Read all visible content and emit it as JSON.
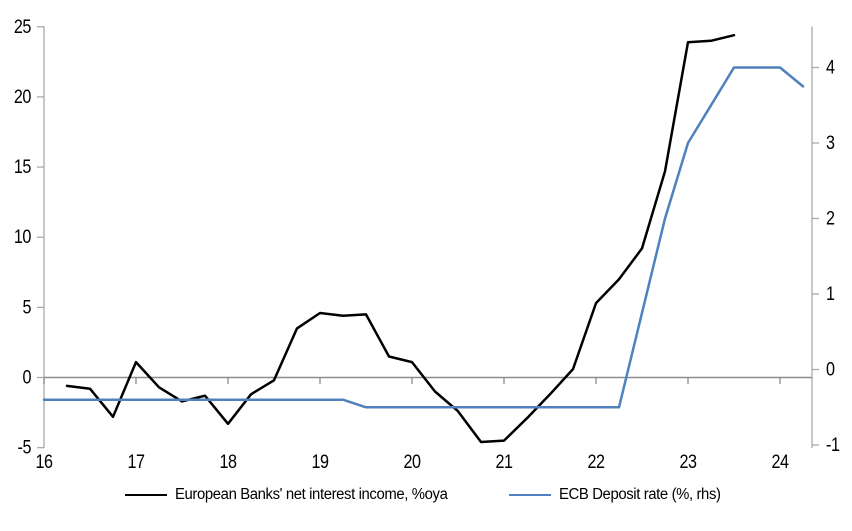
{
  "chart_data": {
    "type": "line",
    "title": "",
    "x_axis": {
      "min": 16,
      "max": 24.35,
      "ticks": [
        16,
        17,
        18,
        19,
        20,
        21,
        22,
        23,
        24
      ]
    },
    "left_axis": {
      "min": -5,
      "max": 25,
      "ticks": [
        -5,
        0,
        5,
        10,
        15,
        20,
        25
      ]
    },
    "right_axis": {
      "min": -1,
      "max": 4.55,
      "ticks": [
        -1,
        0,
        1,
        2,
        3,
        4
      ]
    },
    "grid": false,
    "legend_position": "bottom",
    "colors": {
      "nii_line": "#000000",
      "ecb_line": "#4E81BD",
      "axis": "#A9A9A9",
      "zero_line": "#8C8C8C"
    },
    "series": [
      {
        "name": "European Banks' net interest income, %oya",
        "axis": "left",
        "color": "#000000",
        "points": [
          [
            16.25,
            -0.6
          ],
          [
            16.5,
            -0.8
          ],
          [
            16.75,
            -2.8
          ],
          [
            17,
            1.1
          ],
          [
            17.25,
            -0.7
          ],
          [
            17.5,
            -1.7
          ],
          [
            17.75,
            -1.3
          ],
          [
            18,
            -3.3
          ],
          [
            18.25,
            -1.2
          ],
          [
            18.5,
            -0.2
          ],
          [
            18.75,
            3.5
          ],
          [
            19,
            4.6
          ],
          [
            19.25,
            4.4
          ],
          [
            19.5,
            4.5
          ],
          [
            19.75,
            1.5
          ],
          [
            20,
            1.1
          ],
          [
            20.25,
            -1.0
          ],
          [
            20.5,
            -2.4
          ],
          [
            20.75,
            -4.6
          ],
          [
            21,
            -4.5
          ],
          [
            21.25,
            -2.9
          ],
          [
            21.5,
            -1.2
          ],
          [
            21.75,
            0.6
          ],
          [
            22,
            5.3
          ],
          [
            22.25,
            7.0
          ],
          [
            22.5,
            9.2
          ],
          [
            22.75,
            14.7
          ],
          [
            23,
            23.9
          ],
          [
            23.25,
            24.0
          ],
          [
            23.5,
            24.4
          ]
        ]
      },
      {
        "name": "ECB Deposit rate (%, rhs)",
        "axis": "right",
        "color": "#4E81BD",
        "points": [
          [
            16,
            -0.4
          ],
          [
            19.25,
            -0.4
          ],
          [
            19.5,
            -0.5
          ],
          [
            22.25,
            -0.5
          ],
          [
            22.5,
            0.75
          ],
          [
            22.75,
            2.0
          ],
          [
            23,
            3.0
          ],
          [
            23.25,
            3.5
          ],
          [
            23.5,
            4.0
          ],
          [
            24,
            4.0
          ],
          [
            24.25,
            3.75
          ]
        ]
      }
    ]
  }
}
